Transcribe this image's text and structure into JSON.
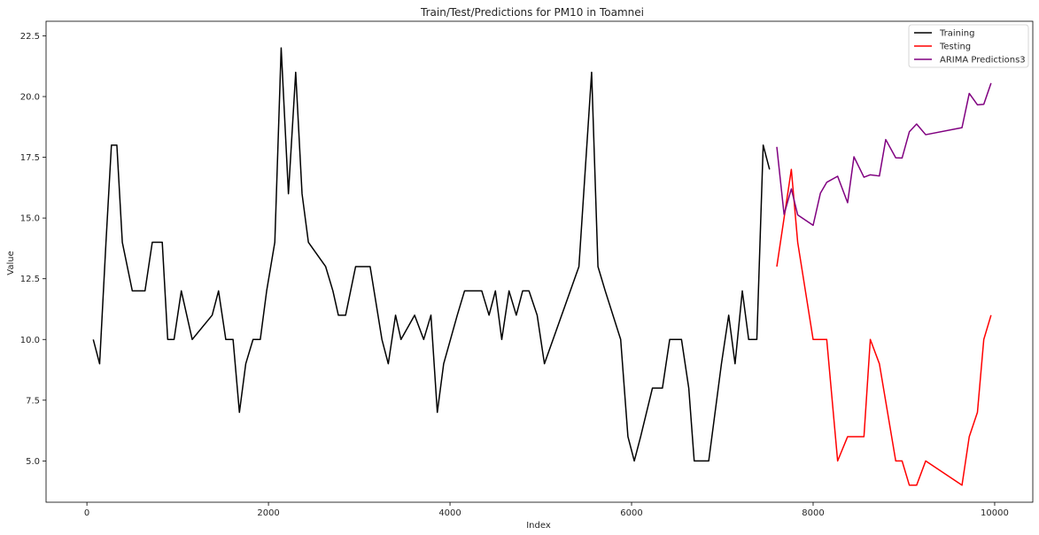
{
  "chart_data": {
    "type": "line",
    "title": "Train/Test/Predictions for PM10 in Toamnei",
    "xlabel": "Index",
    "ylabel": "Value",
    "xlim": [
      -450,
      10420
    ],
    "ylim": [
      3.3,
      23.1
    ],
    "xticks": [
      0,
      2000,
      4000,
      6000,
      8000,
      10000
    ],
    "yticks": [
      5.0,
      7.5,
      10.0,
      12.5,
      15.0,
      17.5,
      20.0,
      22.5
    ],
    "ytick_labels": [
      "5.0",
      "7.5",
      "10.0",
      "12.5",
      "15.0",
      "17.5",
      "20.0",
      "22.5"
    ],
    "xtick_labels": [
      "0",
      "2000",
      "4000",
      "6000",
      "8000",
      "10000"
    ],
    "grid": false,
    "legend_position": "top-right",
    "series": [
      {
        "name": "Training",
        "color": "#000000",
        "points": [
          [
            70,
            10
          ],
          [
            140,
            9
          ],
          [
            210,
            14
          ],
          [
            270,
            18
          ],
          [
            330,
            18
          ],
          [
            390,
            14
          ],
          [
            500,
            12
          ],
          [
            640,
            12
          ],
          [
            720,
            14
          ],
          [
            830,
            14
          ],
          [
            890,
            10
          ],
          [
            960,
            10
          ],
          [
            1040,
            12
          ],
          [
            1160,
            10
          ],
          [
            1380,
            11
          ],
          [
            1450,
            12
          ],
          [
            1530,
            10
          ],
          [
            1610,
            10
          ],
          [
            1680,
            7
          ],
          [
            1750,
            9
          ],
          [
            1830,
            10
          ],
          [
            1910,
            10
          ],
          [
            1980,
            12
          ],
          [
            2070,
            14
          ],
          [
            2140,
            22
          ],
          [
            2220,
            16
          ],
          [
            2300,
            21
          ],
          [
            2370,
            16
          ],
          [
            2440,
            14
          ],
          [
            2630,
            13
          ],
          [
            2710,
            12
          ],
          [
            2770,
            11
          ],
          [
            2850,
            11
          ],
          [
            2960,
            13
          ],
          [
            3120,
            13
          ],
          [
            3250,
            10
          ],
          [
            3320,
            9
          ],
          [
            3400,
            11
          ],
          [
            3460,
            10
          ],
          [
            3610,
            11
          ],
          [
            3710,
            10
          ],
          [
            3790,
            11
          ],
          [
            3860,
            7
          ],
          [
            3930,
            9
          ],
          [
            4080,
            11
          ],
          [
            4160,
            12
          ],
          [
            4350,
            12
          ],
          [
            4430,
            11
          ],
          [
            4500,
            12
          ],
          [
            4570,
            10
          ],
          [
            4650,
            12
          ],
          [
            4730,
            11
          ],
          [
            4800,
            12
          ],
          [
            4870,
            12
          ],
          [
            4960,
            11
          ],
          [
            5040,
            9
          ],
          [
            5420,
            13
          ],
          [
            5560,
            21
          ],
          [
            5630,
            13
          ],
          [
            5710,
            12
          ],
          [
            5880,
            10
          ],
          [
            5960,
            6
          ],
          [
            6030,
            5
          ],
          [
            6100,
            6
          ],
          [
            6230,
            8
          ],
          [
            6340,
            8
          ],
          [
            6420,
            10
          ],
          [
            6550,
            10
          ],
          [
            6630,
            8
          ],
          [
            6690,
            5
          ],
          [
            6850,
            5
          ],
          [
            6990,
            9
          ],
          [
            7070,
            11
          ],
          [
            7140,
            9
          ],
          [
            7220,
            12
          ],
          [
            7290,
            10
          ],
          [
            7380,
            10
          ],
          [
            7450,
            18
          ],
          [
            7520,
            17
          ]
        ]
      },
      {
        "name": "Testing",
        "color": "#ff0000",
        "points": [
          [
            7600,
            13
          ],
          [
            7680,
            15
          ],
          [
            7760,
            17
          ],
          [
            7830,
            14
          ],
          [
            8000,
            10
          ],
          [
            8150,
            10
          ],
          [
            8270,
            5
          ],
          [
            8380,
            6
          ],
          [
            8560,
            6
          ],
          [
            8630,
            10
          ],
          [
            8730,
            9
          ],
          [
            8910,
            5
          ],
          [
            8980,
            5
          ],
          [
            9060,
            4
          ],
          [
            9140,
            4
          ],
          [
            9240,
            5
          ],
          [
            9640,
            4
          ],
          [
            9720,
            6
          ],
          [
            9810,
            7
          ],
          [
            9880,
            10
          ],
          [
            9960,
            11
          ]
        ]
      },
      {
        "name": "ARIMA Predictions3",
        "color": "#800080",
        "points": [
          [
            7600,
            17.93
          ],
          [
            7680,
            15.15
          ],
          [
            7760,
            16.2
          ],
          [
            7830,
            15.13
          ],
          [
            8000,
            14.7
          ],
          [
            8080,
            16.02
          ],
          [
            8150,
            16.47
          ],
          [
            8270,
            16.72
          ],
          [
            8380,
            15.63
          ],
          [
            8450,
            17.52
          ],
          [
            8560,
            16.68
          ],
          [
            8630,
            16.78
          ],
          [
            8730,
            16.73
          ],
          [
            8800,
            18.23
          ],
          [
            8910,
            17.48
          ],
          [
            8980,
            17.47
          ],
          [
            9060,
            18.55
          ],
          [
            9140,
            18.87
          ],
          [
            9240,
            18.43
          ],
          [
            9640,
            18.72
          ],
          [
            9720,
            20.13
          ],
          [
            9810,
            19.66
          ],
          [
            9880,
            19.68
          ],
          [
            9960,
            20.55
          ]
        ]
      }
    ]
  }
}
